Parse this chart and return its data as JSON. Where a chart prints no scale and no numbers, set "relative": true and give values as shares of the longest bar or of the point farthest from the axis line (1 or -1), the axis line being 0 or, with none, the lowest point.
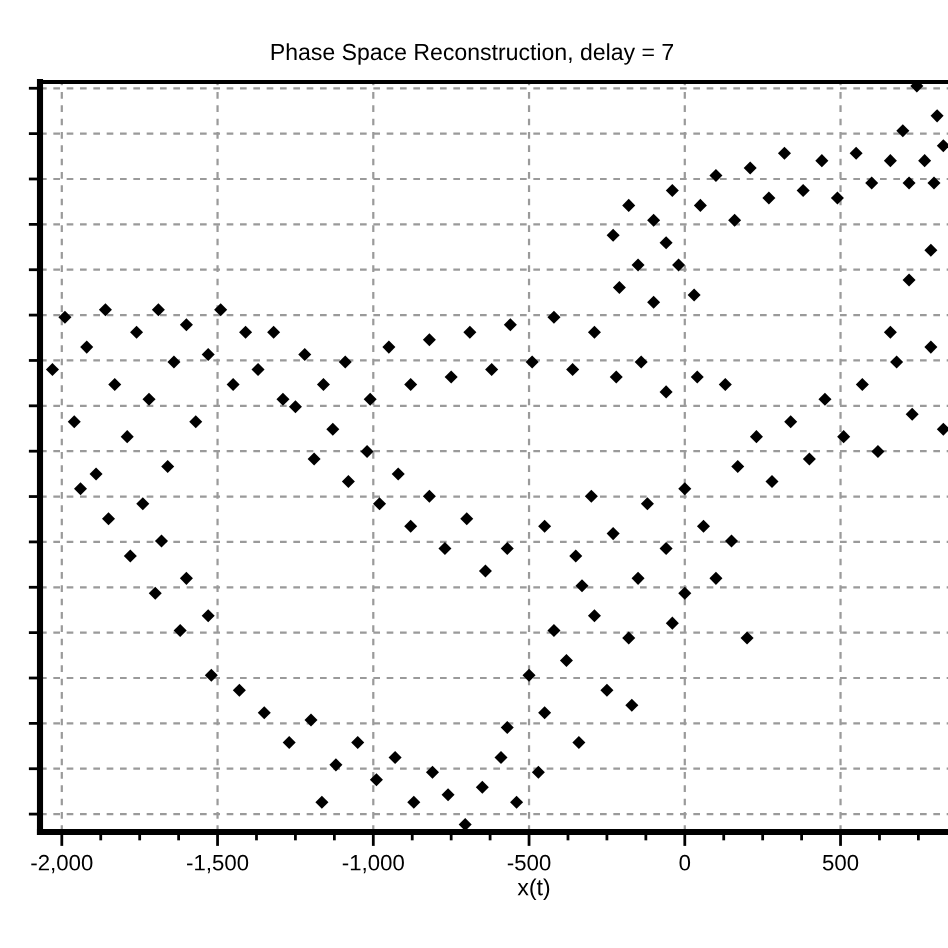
{
  "chart_data": {
    "type": "scatter",
    "title": "Phase Space Reconstruction, delay = 7",
    "xlabel": "x(t)",
    "relative": true,
    "xlim": [
      -2070,
      845
    ],
    "xticks": [
      {
        "value": -2000,
        "label": "-2,000"
      },
      {
        "value": -1500,
        "label": "-1,500"
      },
      {
        "value": -1000,
        "label": "-1,000"
      },
      {
        "value": -500,
        "label": "-500"
      },
      0,
      500
    ],
    "tick_labels": "x",
    "grid": true,
    "marker": "diamond",
    "color": "#000000",
    "x": [
      -2030,
      -1990,
      -1960,
      -1920,
      -1890,
      -1860,
      -1830,
      -1790,
      -1760,
      -1720,
      -1690,
      -1660,
      -1640,
      -1600,
      -1570,
      -1530,
      -1490,
      -1450,
      -1410,
      -1940,
      -1850,
      -1740,
      -1780,
      -1680,
      -1700,
      -1600,
      -1620,
      -1530,
      -1520,
      -1430,
      -1350,
      -1270,
      -1200,
      -1165,
      -1120,
      -1050,
      -990,
      -930,
      -870,
      -810,
      -705,
      -760,
      -650,
      -590,
      -540,
      -470,
      -570,
      -450,
      -340,
      -500,
      -380,
      -250,
      -420,
      -290,
      -170,
      -330,
      -180,
      -450,
      -350,
      -300,
      -230,
      -150,
      -120,
      -60,
      0,
      0,
      60,
      100,
      150,
      200,
      -40,
      -1250,
      -1190,
      -1130,
      -1080,
      -1020,
      -980,
      -920,
      -880,
      -820,
      -770,
      -700,
      -640,
      -570,
      -1370,
      -1320,
      -1290,
      -1220,
      -1160,
      -1090,
      -1010,
      -950,
      -880,
      -820,
      -750,
      -690,
      -620,
      -560,
      -490,
      -420,
      -360,
      -290,
      -220,
      -140,
      -60,
      40,
      130,
      -210,
      -100,
      -230,
      -150,
      -60,
      -180,
      -100,
      -20,
      -40,
      30,
      50,
      100,
      160,
      210,
      270,
      320,
      380,
      440,
      490,
      550,
      600,
      660,
      700,
      745,
      770,
      810,
      720,
      800,
      830,
      720,
      790,
      660,
      170,
      230,
      280,
      340,
      400,
      450,
      510,
      570,
      620,
      680,
      730,
      790,
      830
    ],
    "values": [
      0.62,
      0.69,
      0.55,
      0.65,
      0.48,
      0.7,
      0.6,
      0.53,
      0.67,
      0.58,
      0.7,
      0.49,
      0.63,
      0.68,
      0.55,
      0.64,
      0.7,
      0.6,
      0.67,
      0.46,
      0.42,
      0.44,
      0.37,
      0.39,
      0.32,
      0.34,
      0.27,
      0.29,
      0.21,
      0.19,
      0.16,
      0.12,
      0.15,
      0.04,
      0.09,
      0.12,
      0.07,
      0.1,
      0.04,
      0.08,
      0.01,
      0.05,
      0.06,
      0.1,
      0.04,
      0.08,
      0.14,
      0.16,
      0.12,
      0.21,
      0.23,
      0.19,
      0.27,
      0.29,
      0.17,
      0.33,
      0.26,
      0.41,
      0.37,
      0.45,
      0.4,
      0.34,
      0.44,
      0.38,
      0.46,
      0.32,
      0.41,
      0.34,
      0.39,
      0.26,
      0.28,
      0.57,
      0.5,
      0.54,
      0.47,
      0.51,
      0.44,
      0.48,
      0.41,
      0.45,
      0.38,
      0.42,
      0.35,
      0.38,
      0.62,
      0.67,
      0.58,
      0.64,
      0.6,
      0.63,
      0.58,
      0.65,
      0.6,
      0.66,
      0.61,
      0.67,
      0.62,
      0.68,
      0.63,
      0.69,
      0.62,
      0.67,
      0.61,
      0.63,
      0.59,
      0.61,
      0.6,
      0.73,
      0.71,
      0.8,
      0.76,
      0.79,
      0.84,
      0.82,
      0.76,
      0.86,
      0.72,
      0.84,
      0.88,
      0.82,
      0.89,
      0.85,
      0.91,
      0.86,
      0.9,
      0.85,
      0.91,
      0.87,
      0.9,
      0.94,
      1,
      0.9,
      0.96,
      0.87,
      0.87,
      0.92,
      0.74,
      0.78,
      0.67,
      0.49,
      0.53,
      0.47,
      0.55,
      0.5,
      0.58,
      0.53,
      0.6,
      0.51,
      0.63,
      0.56,
      0.65,
      0.54
    ]
  }
}
